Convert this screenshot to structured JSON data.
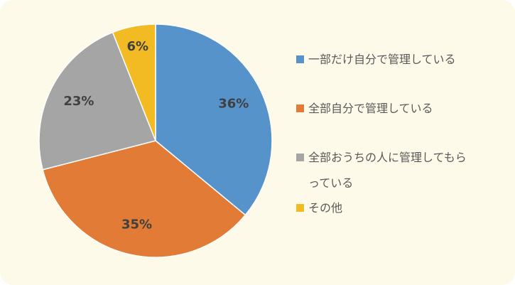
{
  "chart_data": {
    "type": "pie",
    "categories": [
      "一部だけ自分で管理している",
      "全部自分で管理している",
      "全部おうちの人に管理してもらっている",
      "その他"
    ],
    "values": [
      36,
      35,
      23,
      6
    ],
    "value_labels": [
      "36%",
      "35%",
      "23%",
      "6%"
    ],
    "colors": [
      "#5693cb",
      "#e27b35",
      "#a5a5a5",
      "#f3bb23"
    ],
    "legend": "right"
  }
}
